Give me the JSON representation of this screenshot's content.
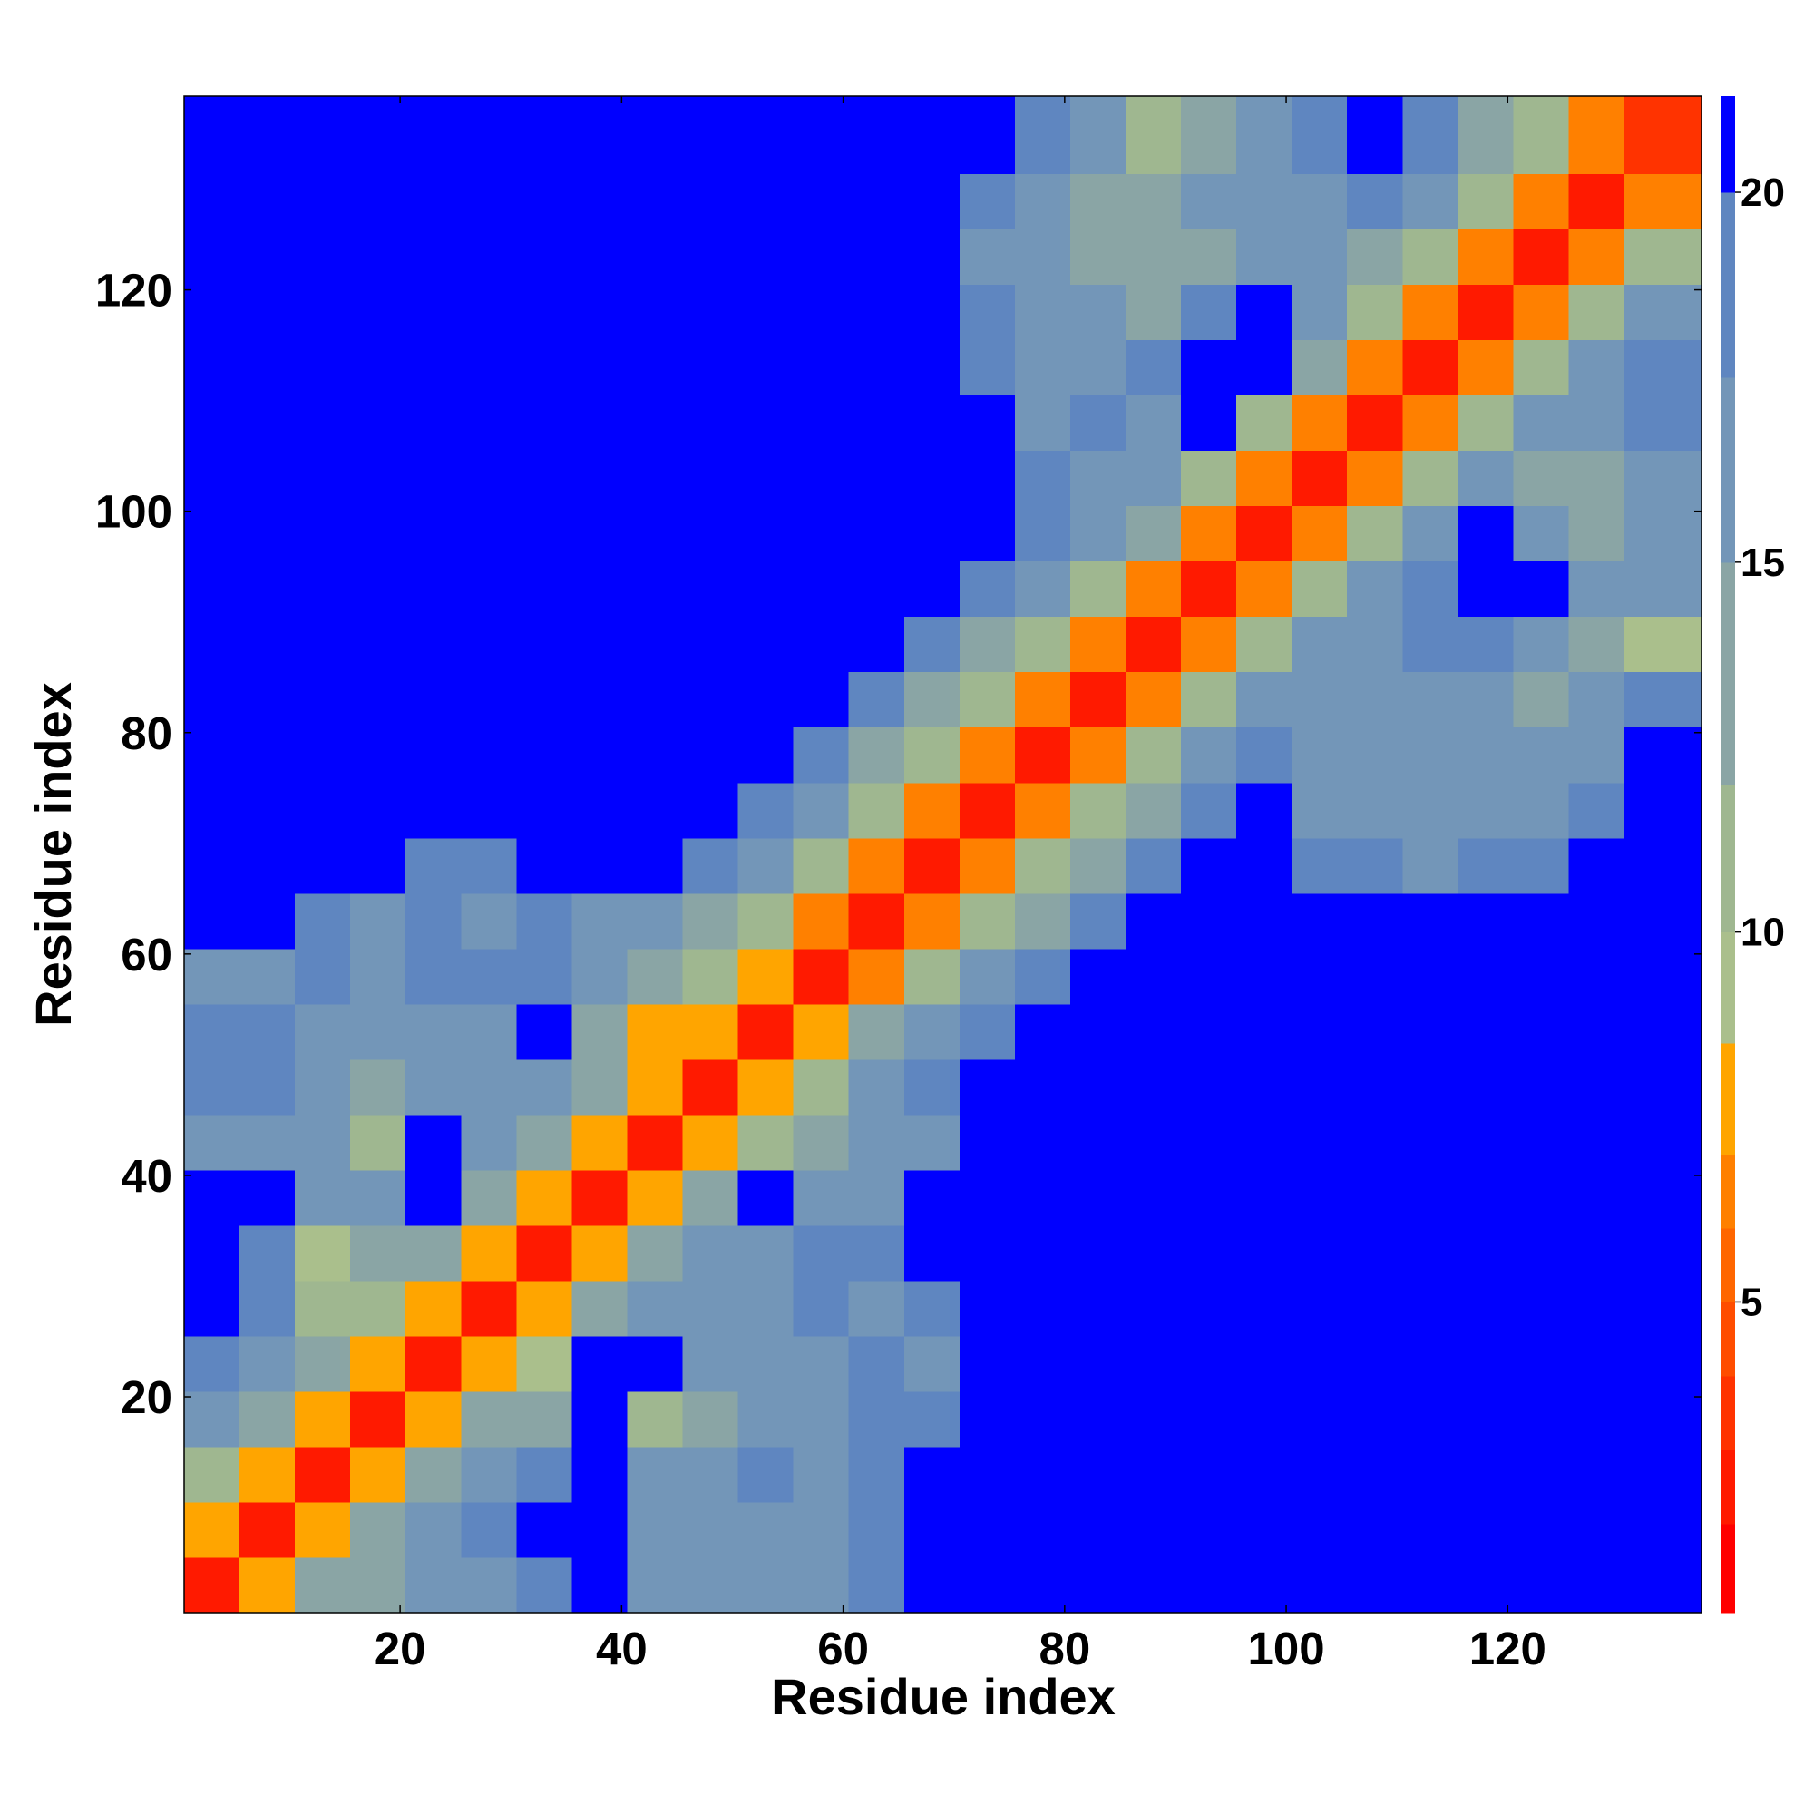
{
  "chart_data": {
    "type": "heatmap",
    "xlabel": "Residue index",
    "ylabel": "Residue index",
    "xbins": [
      0.5,
      5.5,
      10.5,
      15.5,
      20.5,
      25.5,
      30.5,
      35.5,
      40.5,
      45.5,
      50.5,
      55.5,
      60.5,
      65.5,
      70.5,
      75.5,
      80.5,
      85.5,
      90.5,
      95.5,
      100.5,
      105.5,
      110.5,
      115.5,
      120.5,
      125.5,
      130.5,
      137.5
    ],
    "ybins": [
      0.5,
      5.5,
      10.5,
      15.5,
      20.5,
      25.5,
      30.5,
      35.5,
      40.5,
      45.5,
      50.5,
      55.5,
      60.5,
      65.5,
      70.5,
      75.5,
      80.5,
      85.5,
      90.5,
      95.5,
      100.5,
      105.5,
      110.5,
      115.5,
      120.5,
      125.5,
      130.5,
      137.5
    ],
    "xlim": [
      0.5,
      137.5
    ],
    "ylim": [
      0.5,
      137.5
    ],
    "xticks": [
      20,
      40,
      60,
      80,
      100,
      120
    ],
    "yticks": [
      20,
      40,
      60,
      80,
      100,
      120
    ],
    "zlim": [
      0.8,
      21.3
    ],
    "colorbar_ticks": [
      5,
      10,
      15,
      20
    ],
    "levels": [
      0.8,
      2,
      3,
      4,
      5,
      6,
      7,
      8.5,
      10,
      12,
      15,
      17.5,
      20,
      21.3
    ],
    "colors": [
      "#ff0000",
      "#ff1a00",
      "#ff3300",
      "#ff4d00",
      "#ff6600",
      "#ff8000",
      "#ffa500",
      "#aabf8c",
      "#9fb790",
      "#8aa5a5",
      "#7396b8",
      "#5f86c0",
      "#0000ff"
    ],
    "z": [
      [
        2.5,
        7,
        12,
        14,
        17,
        16,
        18,
        20,
        17,
        17,
        16,
        15,
        19,
        21,
        21,
        21,
        21,
        21,
        21,
        21,
        21,
        21,
        21,
        21,
        21,
        21,
        21
      ],
      [
        7,
        2.5,
        7,
        12,
        16,
        18,
        21,
        21,
        16,
        17,
        17,
        15,
        19,
        21,
        21,
        21,
        21,
        21,
        21,
        21,
        21,
        21,
        21,
        21,
        21,
        21,
        21
      ],
      [
        10,
        8,
        2.5,
        8,
        13,
        16,
        19,
        21,
        15,
        17,
        18,
        16,
        18,
        21,
        21,
        21,
        21,
        21,
        21,
        21,
        21,
        21,
        21,
        21,
        21,
        21,
        21
      ],
      [
        15,
        13,
        8,
        2.5,
        8,
        12,
        14,
        21,
        10,
        14,
        17,
        16,
        18,
        19,
        21,
        21,
        21,
        21,
        21,
        21,
        21,
        21,
        21,
        21,
        21,
        21,
        21
      ],
      [
        18,
        16,
        12,
        8,
        2.5,
        7,
        9,
        21,
        21,
        16,
        17,
        17,
        19,
        17,
        20,
        21,
        21,
        21,
        21,
        21,
        21,
        21,
        21,
        21,
        21,
        21,
        21
      ],
      [
        21,
        19,
        10,
        11,
        7,
        2.5,
        7,
        12,
        15,
        15,
        16,
        18,
        17,
        18,
        21,
        21,
        21,
        21,
        21,
        21,
        21,
        21,
        21,
        21,
        21,
        21,
        21
      ],
      [
        21,
        18,
        9,
        13,
        12,
        7,
        2.5,
        7,
        12,
        15,
        17,
        18,
        18,
        21,
        21,
        21,
        21,
        21,
        21,
        21,
        21,
        21,
        21,
        21,
        21,
        21,
        21
      ],
      [
        21,
        21,
        17,
        16,
        21,
        14,
        7,
        2.5,
        7,
        14,
        20,
        15,
        17,
        20,
        21,
        21,
        21,
        21,
        21,
        21,
        21,
        21,
        21,
        21,
        21,
        21,
        21
      ],
      [
        16,
        17,
        15,
        10,
        21,
        17,
        12,
        7,
        2.5,
        7,
        11,
        14,
        16,
        17,
        21,
        21,
        21,
        21,
        21,
        21,
        21,
        21,
        21,
        21,
        21,
        21,
        21
      ],
      [
        18,
        19,
        17,
        12,
        16,
        16,
        17,
        12,
        8,
        2.5,
        7,
        11,
        15,
        19,
        21,
        21,
        21,
        21,
        21,
        21,
        21,
        21,
        21,
        21,
        21,
        21,
        21
      ],
      [
        19,
        18,
        16,
        16,
        17,
        16,
        21,
        14,
        8,
        7,
        2.5,
        7,
        12,
        16,
        19,
        21,
        21,
        21,
        21,
        21,
        21,
        21,
        21,
        21,
        21,
        21,
        21
      ],
      [
        17,
        15,
        18,
        16,
        18,
        19,
        18,
        17,
        14,
        11,
        7,
        2.5,
        6,
        11,
        15,
        19,
        21,
        21,
        21,
        21,
        21,
        21,
        21,
        21,
        21,
        21,
        21
      ],
      [
        21,
        21,
        19,
        16,
        18,
        17,
        19,
        17,
        17,
        14,
        11,
        6,
        2.5,
        6,
        10,
        14,
        19,
        21,
        21,
        21,
        21,
        20,
        20,
        21,
        21,
        21,
        21
      ],
      [
        21,
        21,
        21,
        20,
        18,
        19,
        20,
        21,
        21,
        18,
        15,
        11,
        6,
        2.5,
        6,
        10,
        14,
        19,
        21,
        21,
        19,
        18,
        17,
        18,
        19,
        20,
        21
      ],
      [
        21,
        21,
        21,
        21,
        21,
        21,
        21,
        21,
        21,
        21,
        19,
        15,
        10,
        6,
        2.5,
        6,
        10,
        14,
        19,
        21,
        17,
        16,
        17,
        16,
        17,
        18,
        21
      ],
      [
        21,
        21,
        21,
        21,
        21,
        21,
        21,
        21,
        21,
        21,
        21,
        19,
        14,
        10,
        6,
        2.5,
        6,
        10,
        15,
        19,
        17,
        16,
        17,
        16,
        15,
        17,
        20
      ],
      [
        21,
        21,
        21,
        21,
        21,
        21,
        21,
        21,
        21,
        21,
        21,
        21,
        19,
        14,
        10,
        6,
        2.5,
        6,
        10,
        15,
        16,
        15,
        17,
        15,
        14,
        16,
        18
      ],
      [
        21,
        21,
        21,
        21,
        21,
        21,
        21,
        21,
        21,
        21,
        21,
        21,
        21,
        19,
        14,
        10,
        6,
        2.5,
        6,
        10,
        15,
        16,
        19,
        18,
        15,
        14,
        9
      ],
      [
        21,
        21,
        21,
        21,
        21,
        21,
        21,
        21,
        21,
        21,
        21,
        21,
        21,
        21,
        19,
        15,
        10,
        6,
        2.5,
        6,
        10,
        15,
        18,
        21,
        21,
        15,
        15
      ],
      [
        21,
        21,
        21,
        21,
        21,
        21,
        21,
        21,
        21,
        21,
        21,
        21,
        21,
        21,
        21,
        18,
        15,
        13,
        6,
        2.5,
        6,
        10,
        15,
        20,
        17,
        14,
        16
      ],
      [
        21,
        21,
        21,
        21,
        21,
        21,
        21,
        21,
        21,
        21,
        21,
        21,
        21,
        21,
        21,
        18,
        16,
        15,
        10,
        6,
        2.5,
        6,
        10,
        15,
        14,
        13,
        17
      ],
      [
        21,
        21,
        21,
        21,
        21,
        21,
        21,
        21,
        21,
        21,
        21,
        21,
        21,
        21,
        20,
        17,
        18,
        17,
        21,
        10,
        6,
        2.5,
        6,
        10,
        15,
        17,
        19
      ],
      [
        21,
        21,
        21,
        21,
        21,
        21,
        21,
        21,
        21,
        21,
        21,
        21,
        21,
        21,
        19,
        16,
        17,
        18,
        21,
        21,
        12,
        6,
        2.5,
        6,
        10,
        15,
        18
      ],
      [
        21,
        21,
        21,
        21,
        21,
        21,
        21,
        21,
        21,
        21,
        21,
        21,
        21,
        20,
        18,
        16,
        15,
        14,
        18,
        20,
        16,
        10,
        6,
        2.5,
        6,
        10,
        15
      ],
      [
        21,
        21,
        21,
        21,
        21,
        21,
        21,
        21,
        21,
        21,
        21,
        21,
        21,
        20,
        17,
        16,
        14,
        12,
        13,
        15,
        15,
        14,
        10,
        6,
        2.5,
        6,
        10
      ],
      [
        21,
        21,
        21,
        21,
        21,
        21,
        21,
        21,
        21,
        21,
        21,
        21,
        21,
        21,
        19,
        16,
        14,
        14,
        16,
        15,
        17,
        18,
        15,
        10,
        6,
        2.5,
        6
      ],
      [
        21,
        21,
        21,
        21,
        21,
        21,
        21,
        21,
        21,
        21,
        21,
        21,
        21,
        21,
        21,
        19,
        15,
        11,
        14,
        17,
        18,
        20,
        18,
        14,
        10,
        6,
        3
      ]
    ]
  }
}
